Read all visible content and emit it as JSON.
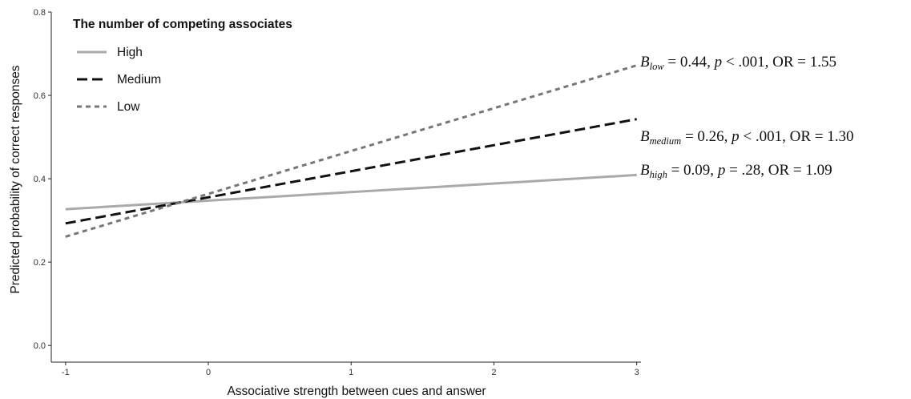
{
  "chart_data": {
    "type": "line",
    "title": "",
    "xlabel": "Associative strength between cues and answer",
    "ylabel": "Predicted probability of correct responses",
    "xlim": [
      -1,
      3
    ],
    "ylim": [
      0,
      0.8
    ],
    "xticks": [
      -1,
      0,
      1,
      2,
      3
    ],
    "xtick_labels": [
      "-1",
      "0",
      "1",
      "2",
      "3"
    ],
    "yticks": [
      0,
      0.2,
      0.4,
      0.6,
      0.8
    ],
    "ytick_labels": [
      "0.0",
      "0.2",
      "0.4",
      "0.6",
      "0.8"
    ],
    "grid": false,
    "legend": {
      "title": "The number of competing associates",
      "position": "top-left",
      "entries": [
        "High",
        "Medium",
        "Low"
      ]
    },
    "series": [
      {
        "name": "High",
        "x": [
          -1,
          3
        ],
        "values": [
          0.327,
          0.409
        ],
        "color": "#aaaaaa",
        "dash": "solid"
      },
      {
        "name": "Medium",
        "x": [
          -1,
          3
        ],
        "values": [
          0.293,
          0.543
        ],
        "color": "#111111",
        "dash": "dashed"
      },
      {
        "name": "Low",
        "x": [
          -1,
          3
        ],
        "values": [
          0.261,
          0.672
        ],
        "color": "#777777",
        "dash": "dotted"
      }
    ],
    "annotations": [
      {
        "series": "Low",
        "b": "B",
        "sub": "low",
        "rest1": " = 0.44, ",
        "p": "p",
        "rest2": " < .001, OR = 1.55"
      },
      {
        "series": "Medium",
        "b": "B",
        "sub": "medium",
        "rest1": " = 0.26, ",
        "p": "p",
        "rest2": " < .001, OR = 1.30"
      },
      {
        "series": "High",
        "b": "B",
        "sub": "high",
        "rest1": " = 0.09, ",
        "p": "p",
        "rest2": " = .28, OR = 1.09"
      }
    ]
  }
}
